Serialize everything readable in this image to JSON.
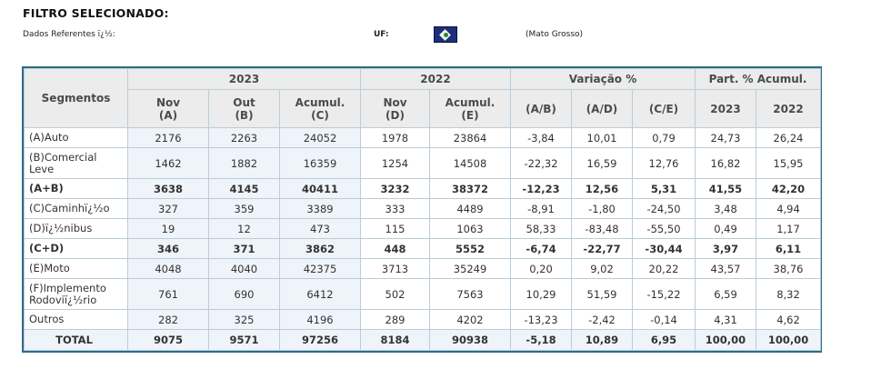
{
  "header": {
    "title": "FILTRO SELECIONADO:",
    "dados_label": "Dados Referentes ï¿½:",
    "uf_label": "UF:",
    "flag_icon": "mato-grosso-flag-icon",
    "state_name": "(Mato Grosso)"
  },
  "table": {
    "segment_header": "Segmentos",
    "groups": {
      "g2023": "2023",
      "g2022": "2022",
      "variacao": "Variação %",
      "part": "Part. % Acumul."
    },
    "subheaders": {
      "nov2023_a": "Nov",
      "nov2023_b": "(A)",
      "out2023_a": "Out",
      "out2023_b": "(B)",
      "acum2023_a": "Acumul.",
      "acum2023_b": "(C)",
      "nov2022_a": "Nov",
      "nov2022_b": "(D)",
      "acum2022_a": "Acumul.",
      "acum2022_b": "(E)",
      "var_ab": "(A/B)",
      "var_ad": "(A/D)",
      "var_ce": "(C/E)",
      "part2023": "2023",
      "part2022": "2022"
    },
    "rows": [
      {
        "seg": "(A)Auto",
        "seg2": "",
        "nov23": "2176",
        "out23": "2263",
        "acum23": "24052",
        "nov22": "1978",
        "acum22": "23864",
        "ab": "-3,84",
        "ad": "10,01",
        "ce": "0,79",
        "p23": "24,73",
        "p22": "26,24"
      },
      {
        "seg": "(B)Comercial",
        "seg2": "Leve",
        "nov23": "1462",
        "out23": "1882",
        "acum23": "16359",
        "nov22": "1254",
        "acum22": "14508",
        "ab": "-22,32",
        "ad": "16,59",
        "ce": "12,76",
        "p23": "16,82",
        "p22": "15,95"
      },
      {
        "seg": "(A+B)",
        "seg2": "",
        "nov23": "3638",
        "out23": "4145",
        "acum23": "40411",
        "nov22": "3232",
        "acum22": "38372",
        "ab": "-12,23",
        "ad": "12,56",
        "ce": "5,31",
        "p23": "41,55",
        "p22": "42,20"
      },
      {
        "seg": "(C)Caminhï¿½o",
        "seg2": "",
        "nov23": "327",
        "out23": "359",
        "acum23": "3389",
        "nov22": "333",
        "acum22": "4489",
        "ab": "-8,91",
        "ad": "-1,80",
        "ce": "-24,50",
        "p23": "3,48",
        "p22": "4,94"
      },
      {
        "seg": "(D)ï¿½nibus",
        "seg2": "",
        "nov23": "19",
        "out23": "12",
        "acum23": "473",
        "nov22": "115",
        "acum22": "1063",
        "ab": "58,33",
        "ad": "-83,48",
        "ce": "-55,50",
        "p23": "0,49",
        "p22": "1,17"
      },
      {
        "seg": "(C+D)",
        "seg2": "",
        "nov23": "346",
        "out23": "371",
        "acum23": "3862",
        "nov22": "448",
        "acum22": "5552",
        "ab": "-6,74",
        "ad": "-22,77",
        "ce": "-30,44",
        "p23": "3,97",
        "p22": "6,11"
      },
      {
        "seg": "(E)Moto",
        "seg2": "",
        "nov23": "4048",
        "out23": "4040",
        "acum23": "42375",
        "nov22": "3713",
        "acum22": "35249",
        "ab": "0,20",
        "ad": "9,02",
        "ce": "20,22",
        "p23": "43,57",
        "p22": "38,76"
      },
      {
        "seg": "(F)Implemento",
        "seg2": "Rodoviï¿½rio",
        "nov23": "761",
        "out23": "690",
        "acum23": "6412",
        "nov22": "502",
        "acum22": "7563",
        "ab": "10,29",
        "ad": "51,59",
        "ce": "-15,22",
        "p23": "6,59",
        "p22": "8,32"
      },
      {
        "seg": "Outros",
        "seg2": "",
        "nov23": "282",
        "out23": "325",
        "acum23": "4196",
        "nov22": "289",
        "acum22": "4202",
        "ab": "-13,23",
        "ad": "-2,42",
        "ce": "-0,14",
        "p23": "4,31",
        "p22": "4,62"
      },
      {
        "seg": "TOTAL",
        "seg2": "",
        "nov23": "9075",
        "out23": "9571",
        "acum23": "97256",
        "nov22": "8184",
        "acum22": "90938",
        "ab": "-5,18",
        "ad": "10,89",
        "ce": "6,95",
        "p23": "100,00",
        "p22": "100,00"
      }
    ]
  }
}
